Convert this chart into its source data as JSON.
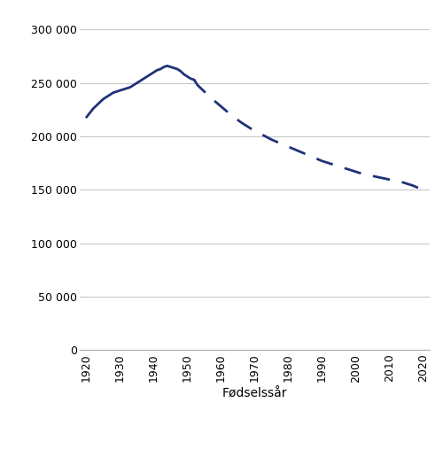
{
  "solid_x": [
    1920,
    1921,
    1922,
    1923,
    1924,
    1925,
    1926,
    1927,
    1928,
    1929,
    1930,
    1931,
    1932,
    1933,
    1934,
    1935,
    1936,
    1937,
    1938,
    1939,
    1940,
    1941,
    1942,
    1943,
    1944,
    1945,
    1946,
    1947,
    1948,
    1949,
    1950,
    1951,
    1952
  ],
  "solid_y": [
    218000,
    222000,
    226000,
    229000,
    232000,
    235000,
    237000,
    239000,
    241000,
    242000,
    243000,
    244000,
    245000,
    246000,
    248000,
    250000,
    252000,
    254000,
    256000,
    258000,
    260000,
    262000,
    263000,
    265000,
    266000,
    265000,
    264000,
    263000,
    261000,
    258000,
    256000,
    254000,
    253000
  ],
  "dashed_x": [
    1952,
    1953,
    1955,
    1957,
    1960,
    1963,
    1966,
    1969,
    1972,
    1975,
    1978,
    1981,
    1984,
    1987,
    1990,
    1993,
    1996,
    1999,
    2002,
    2005,
    2008,
    2011,
    2014,
    2017,
    2020
  ],
  "dashed_y": [
    253000,
    248000,
    242000,
    236000,
    228000,
    220000,
    213000,
    207000,
    202000,
    197000,
    193000,
    189000,
    185000,
    181000,
    177000,
    174000,
    171000,
    168000,
    165000,
    163000,
    161000,
    159000,
    157000,
    154000,
    150000
  ],
  "line_color": "#1f3278",
  "xlabel": "Fødselssår",
  "yticks": [
    0,
    50000,
    100000,
    150000,
    200000,
    250000,
    300000
  ],
  "ytick_labels": [
    "0",
    "50 000",
    "100 000",
    "150 000",
    "200 000",
    "250 000",
    "300 000"
  ],
  "xticks": [
    1920,
    1930,
    1940,
    1950,
    1960,
    1970,
    1980,
    1990,
    2000,
    2010,
    2020
  ],
  "ylim": [
    0,
    315000
  ],
  "xlim": [
    1918,
    2022
  ],
  "background_color": "#ffffff",
  "linewidth": 2.0,
  "grid_color": "#c8c8c8"
}
